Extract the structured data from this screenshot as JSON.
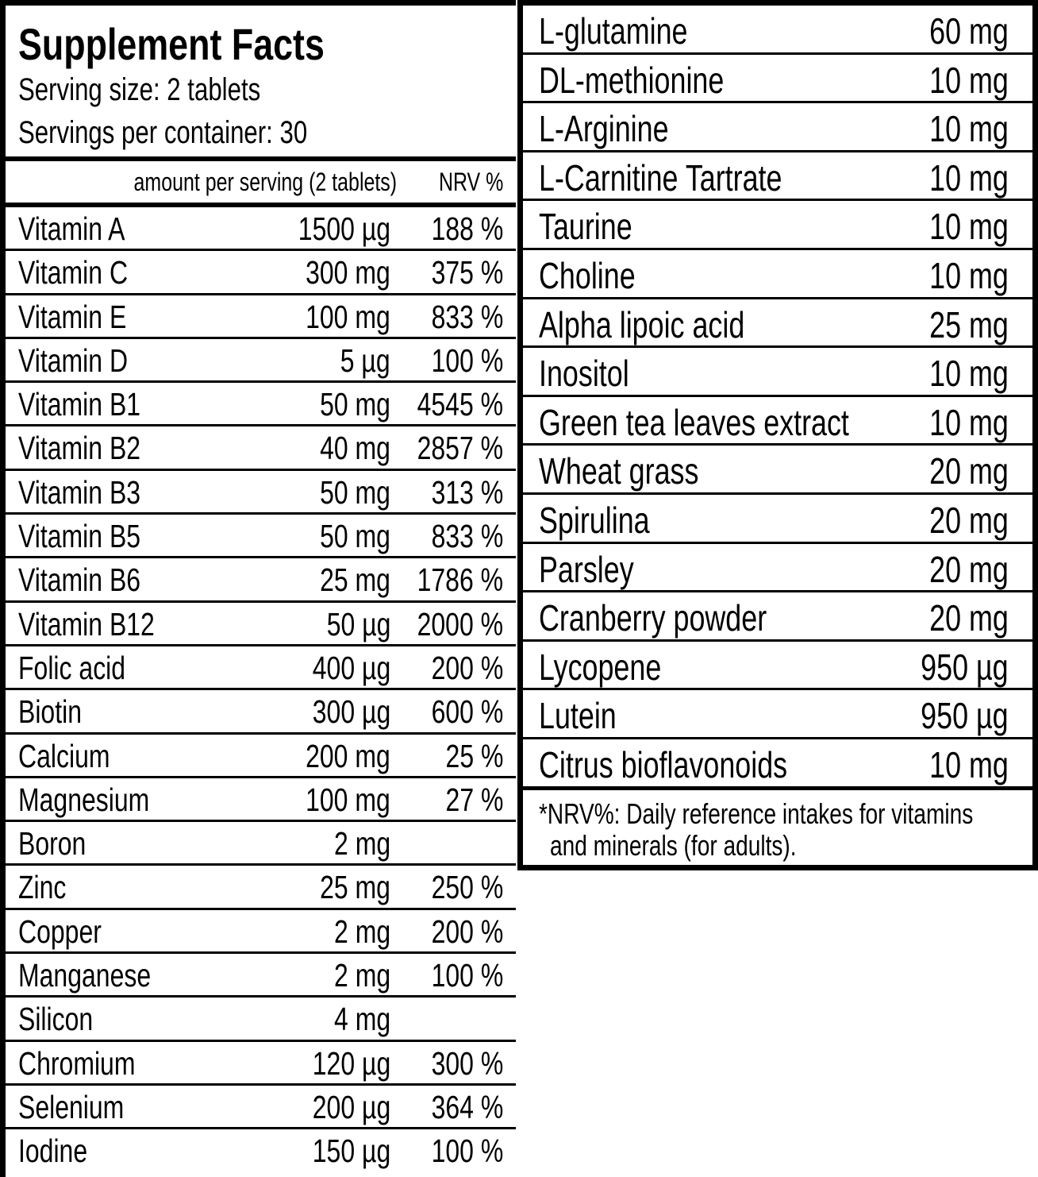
{
  "header": {
    "title": "Supplement Facts",
    "serving_size": "Serving size: 2 tablets",
    "servings_per_container": "Servings per container: 30"
  },
  "columns": {
    "amount": "amount per serving (2 tablets)",
    "nrv": "NRV %"
  },
  "left_rows": [
    {
      "name": "Vitamin A",
      "amount": "1500 µg",
      "nrv": "188 %"
    },
    {
      "name": "Vitamin C",
      "amount": "300 mg",
      "nrv": "375 %"
    },
    {
      "name": "Vitamin E",
      "amount": "100 mg",
      "nrv": "833 %"
    },
    {
      "name": "Vitamin D",
      "amount": "5 µg",
      "nrv": "100 %"
    },
    {
      "name": "Vitamin B1",
      "amount": "50 mg",
      "nrv": "4545 %"
    },
    {
      "name": "Vitamin B2",
      "amount": "40 mg",
      "nrv": "2857 %"
    },
    {
      "name": "Vitamin B3",
      "amount": "50 mg",
      "nrv": "313 %"
    },
    {
      "name": "Vitamin B5",
      "amount": "50 mg",
      "nrv": "833 %"
    },
    {
      "name": "Vitamin B6",
      "amount": "25 mg",
      "nrv": "1786 %"
    },
    {
      "name": "Vitamin B12",
      "amount": "50 µg",
      "nrv": "2000 %"
    },
    {
      "name": "Folic acid",
      "amount": "400 µg",
      "nrv": "200 %"
    },
    {
      "name": "Biotin",
      "amount": "300 µg",
      "nrv": "600 %"
    },
    {
      "name": "Calcium",
      "amount": "200 mg",
      "nrv": "25 %"
    },
    {
      "name": "Magnesium",
      "amount": "100 mg",
      "nrv": "27 %"
    },
    {
      "name": "Boron",
      "amount": "2 mg",
      "nrv": ""
    },
    {
      "name": "Zinc",
      "amount": "25 mg",
      "nrv": "250 %"
    },
    {
      "name": "Copper",
      "amount": "2 mg",
      "nrv": "200 %"
    },
    {
      "name": "Manganese",
      "amount": "2 mg",
      "nrv": "100 %"
    },
    {
      "name": "Silicon",
      "amount": "4 mg",
      "nrv": ""
    },
    {
      "name": "Chromium",
      "amount": "120 µg",
      "nrv": "300 %"
    },
    {
      "name": "Selenium",
      "amount": "200 µg",
      "nrv": "364 %"
    },
    {
      "name": "Iodine",
      "amount": "150 µg",
      "nrv": "100 %"
    }
  ],
  "right_rows": [
    {
      "name": "L-glutamine",
      "amount": "60 mg"
    },
    {
      "name": "DL-methionine",
      "amount": "10 mg"
    },
    {
      "name": "L-Arginine",
      "amount": "10 mg"
    },
    {
      "name": "L-Carnitine Tartrate",
      "amount": "10 mg"
    },
    {
      "name": "Taurine",
      "amount": "10 mg"
    },
    {
      "name": "Choline",
      "amount": "10 mg"
    },
    {
      "name": "Alpha lipoic acid",
      "amount": "25 mg"
    },
    {
      "name": "Inositol",
      "amount": "10 mg"
    },
    {
      "name": "Green tea leaves extract",
      "amount": "10 mg"
    },
    {
      "name": "Wheat grass",
      "amount": "20 mg"
    },
    {
      "name": "Spirulina",
      "amount": "20 mg"
    },
    {
      "name": "Parsley",
      "amount": "20 mg"
    },
    {
      "name": "Cranberry powder",
      "amount": "20 mg"
    },
    {
      "name": "Lycopene",
      "amount": "950 µg"
    },
    {
      "name": "Lutein",
      "amount": "950 µg"
    },
    {
      "name": "Citrus bioflavonoids",
      "amount": "10 mg"
    }
  ],
  "footnote": {
    "line1": "*NRV%: Daily reference intakes for vitamins",
    "line2": "and minerals (for adults)."
  }
}
